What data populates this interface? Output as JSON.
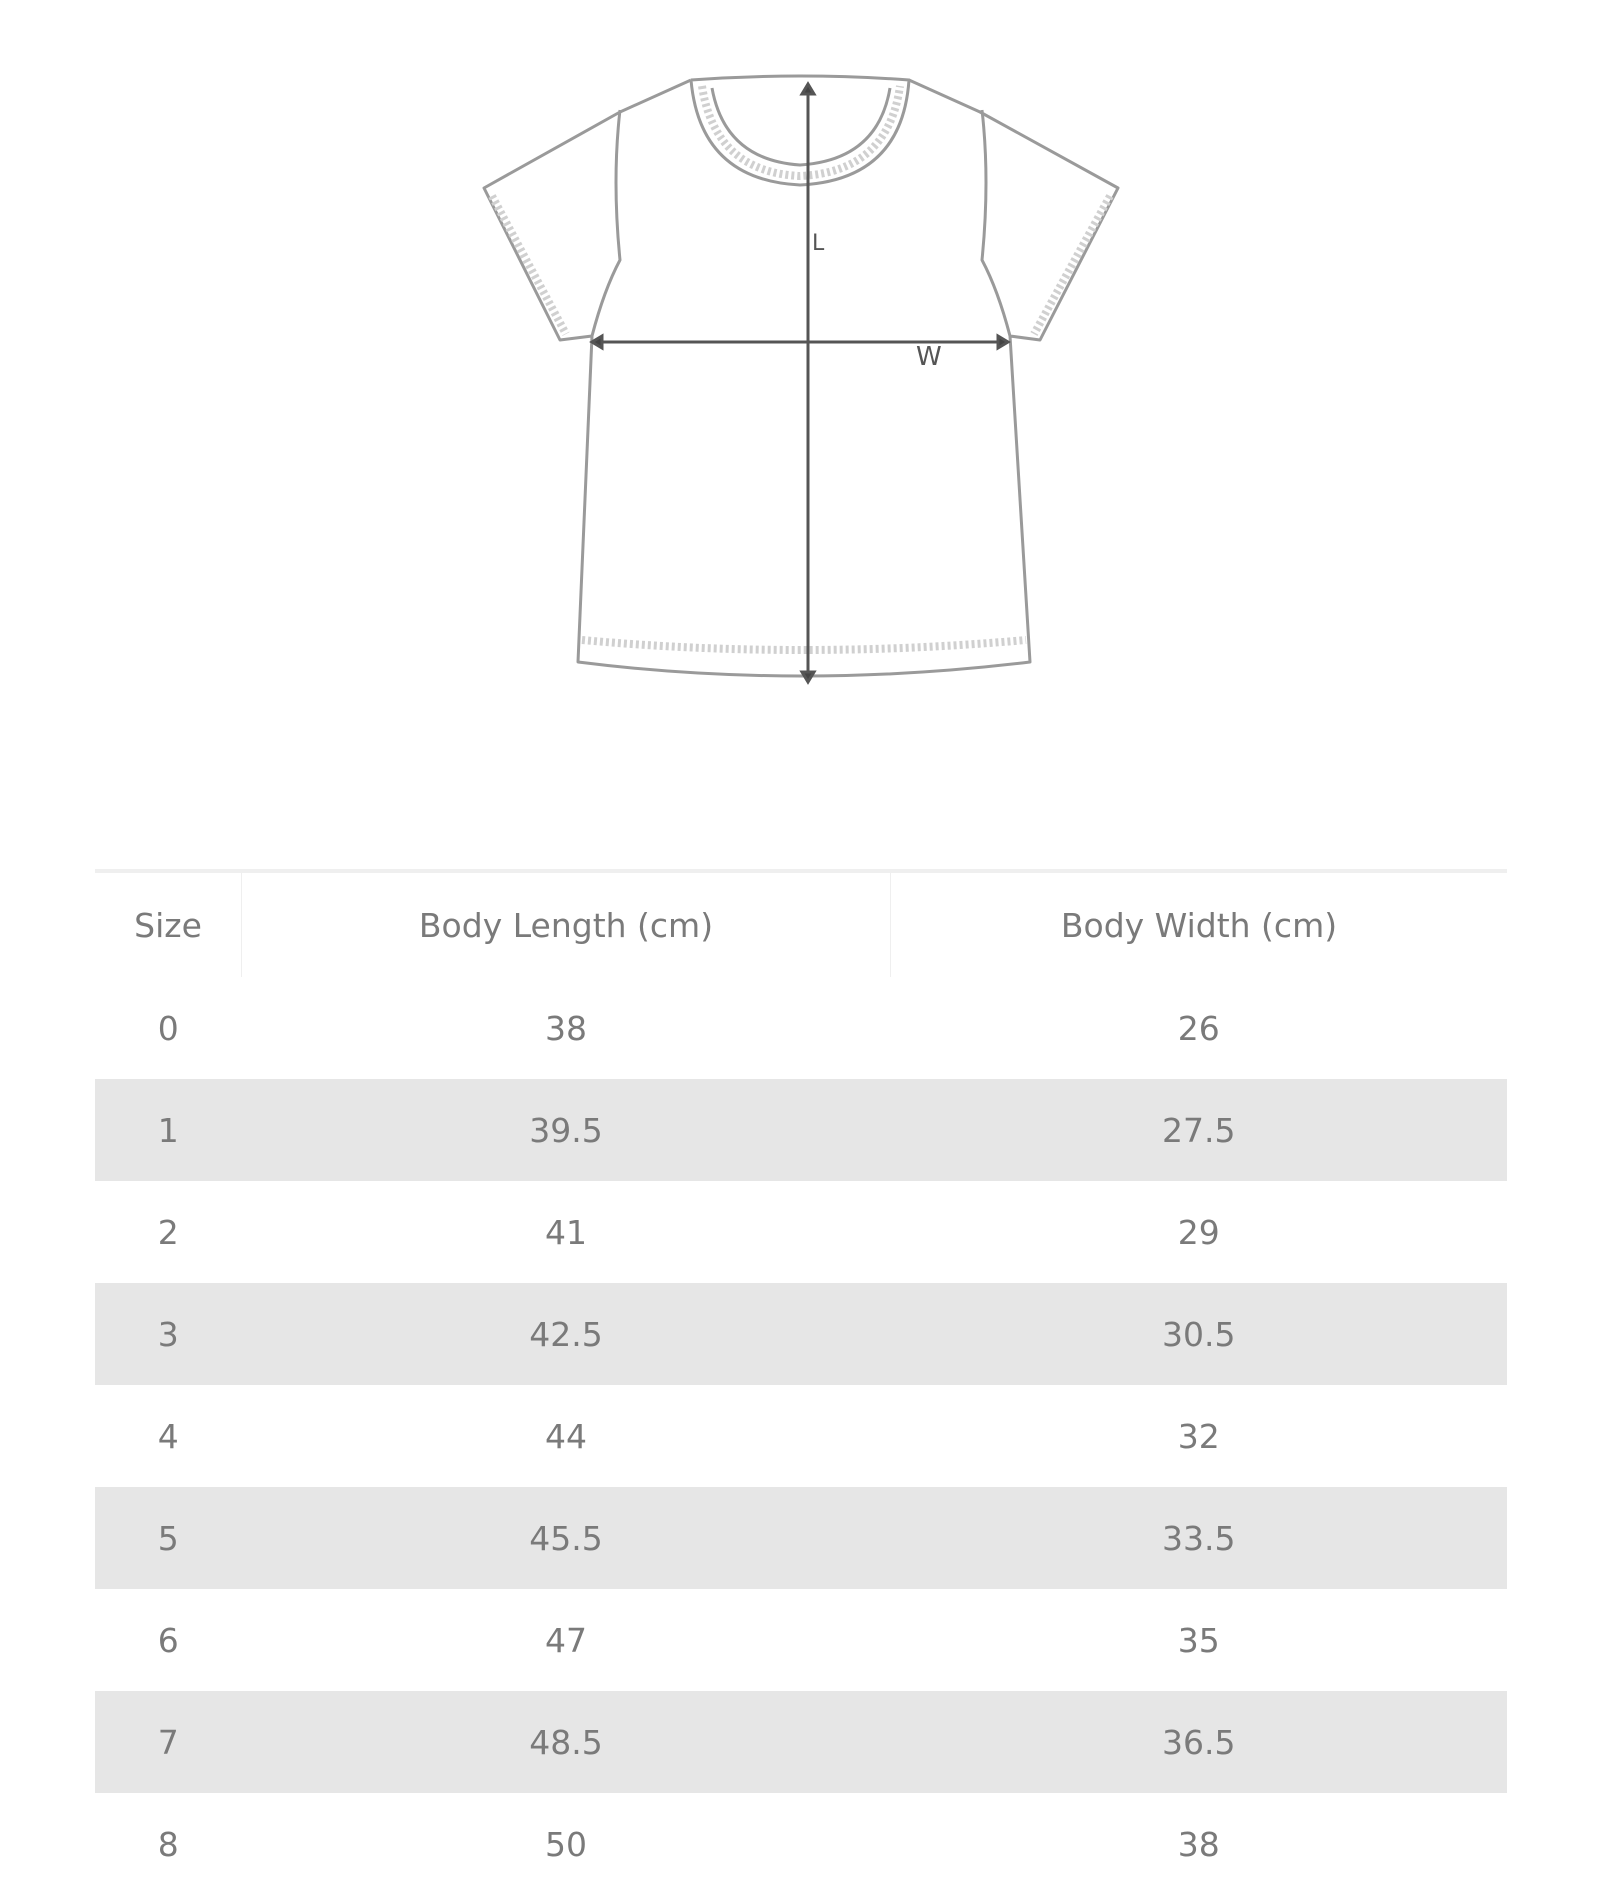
{
  "diagram": {
    "length_label": "L",
    "width_label": "W"
  },
  "table": {
    "headers": [
      "Size",
      "Body Length (cm)",
      "Body Width (cm)"
    ],
    "rows": [
      [
        "0",
        "38",
        "26"
      ],
      [
        "1",
        "39.5",
        "27.5"
      ],
      [
        "2",
        "41",
        "29"
      ],
      [
        "3",
        "42.5",
        "30.5"
      ],
      [
        "4",
        "44",
        "32"
      ],
      [
        "5",
        "45.5",
        "33.5"
      ],
      [
        "6",
        "47",
        "35"
      ],
      [
        "7",
        "48.5",
        "36.5"
      ],
      [
        "8",
        "50",
        "38"
      ]
    ],
    "stripe_color": "#e6e6e6"
  }
}
